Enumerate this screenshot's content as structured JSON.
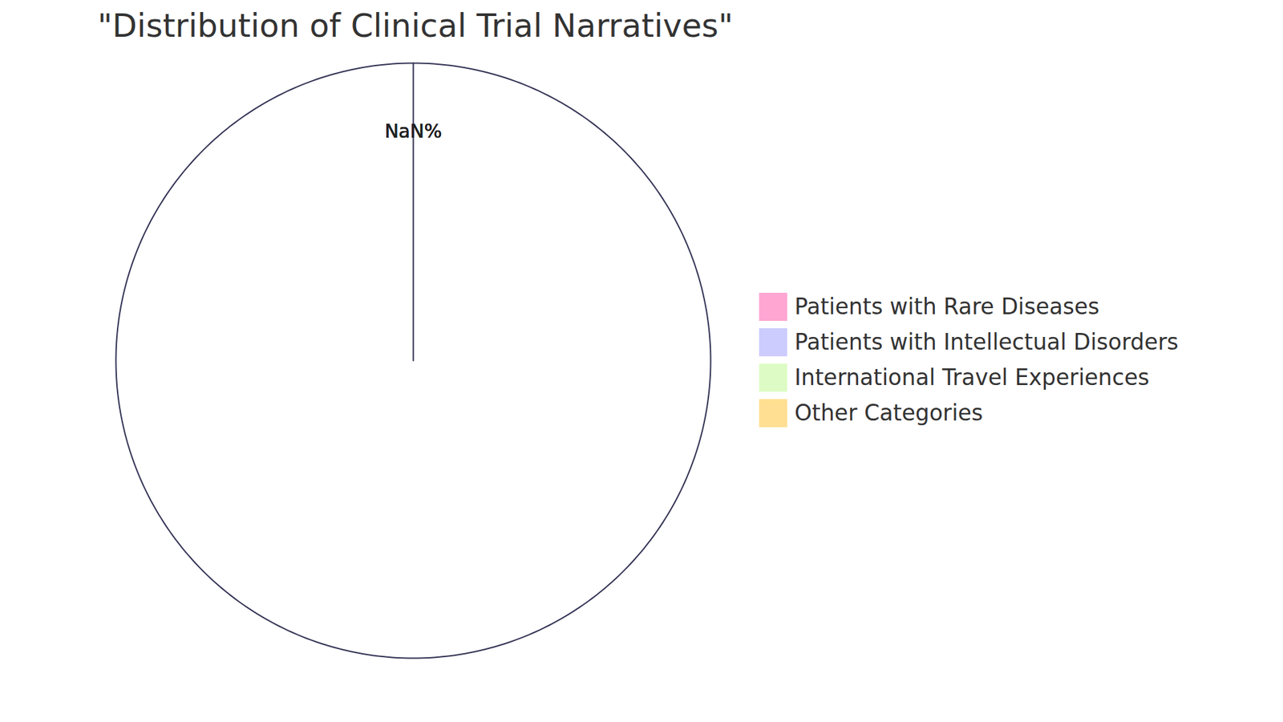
{
  "chart_data": {
    "type": "pie",
    "title": "\"Distribution of Clinical Trial Narratives\"",
    "categories": [
      "Patients with Rare Diseases",
      "Patients with Intellectual Disorders",
      "International Travel Experiences",
      "Other Categories"
    ],
    "values": [
      null,
      null,
      null,
      null
    ],
    "value_labels": [
      "NaN%",
      "NaN%",
      "NaN%",
      "NaN%"
    ],
    "colors": [
      "#ffa6d3",
      "#ccccff",
      "#ddfcc5",
      "#ffdf91"
    ],
    "data_labels": true,
    "legend": "right"
  }
}
